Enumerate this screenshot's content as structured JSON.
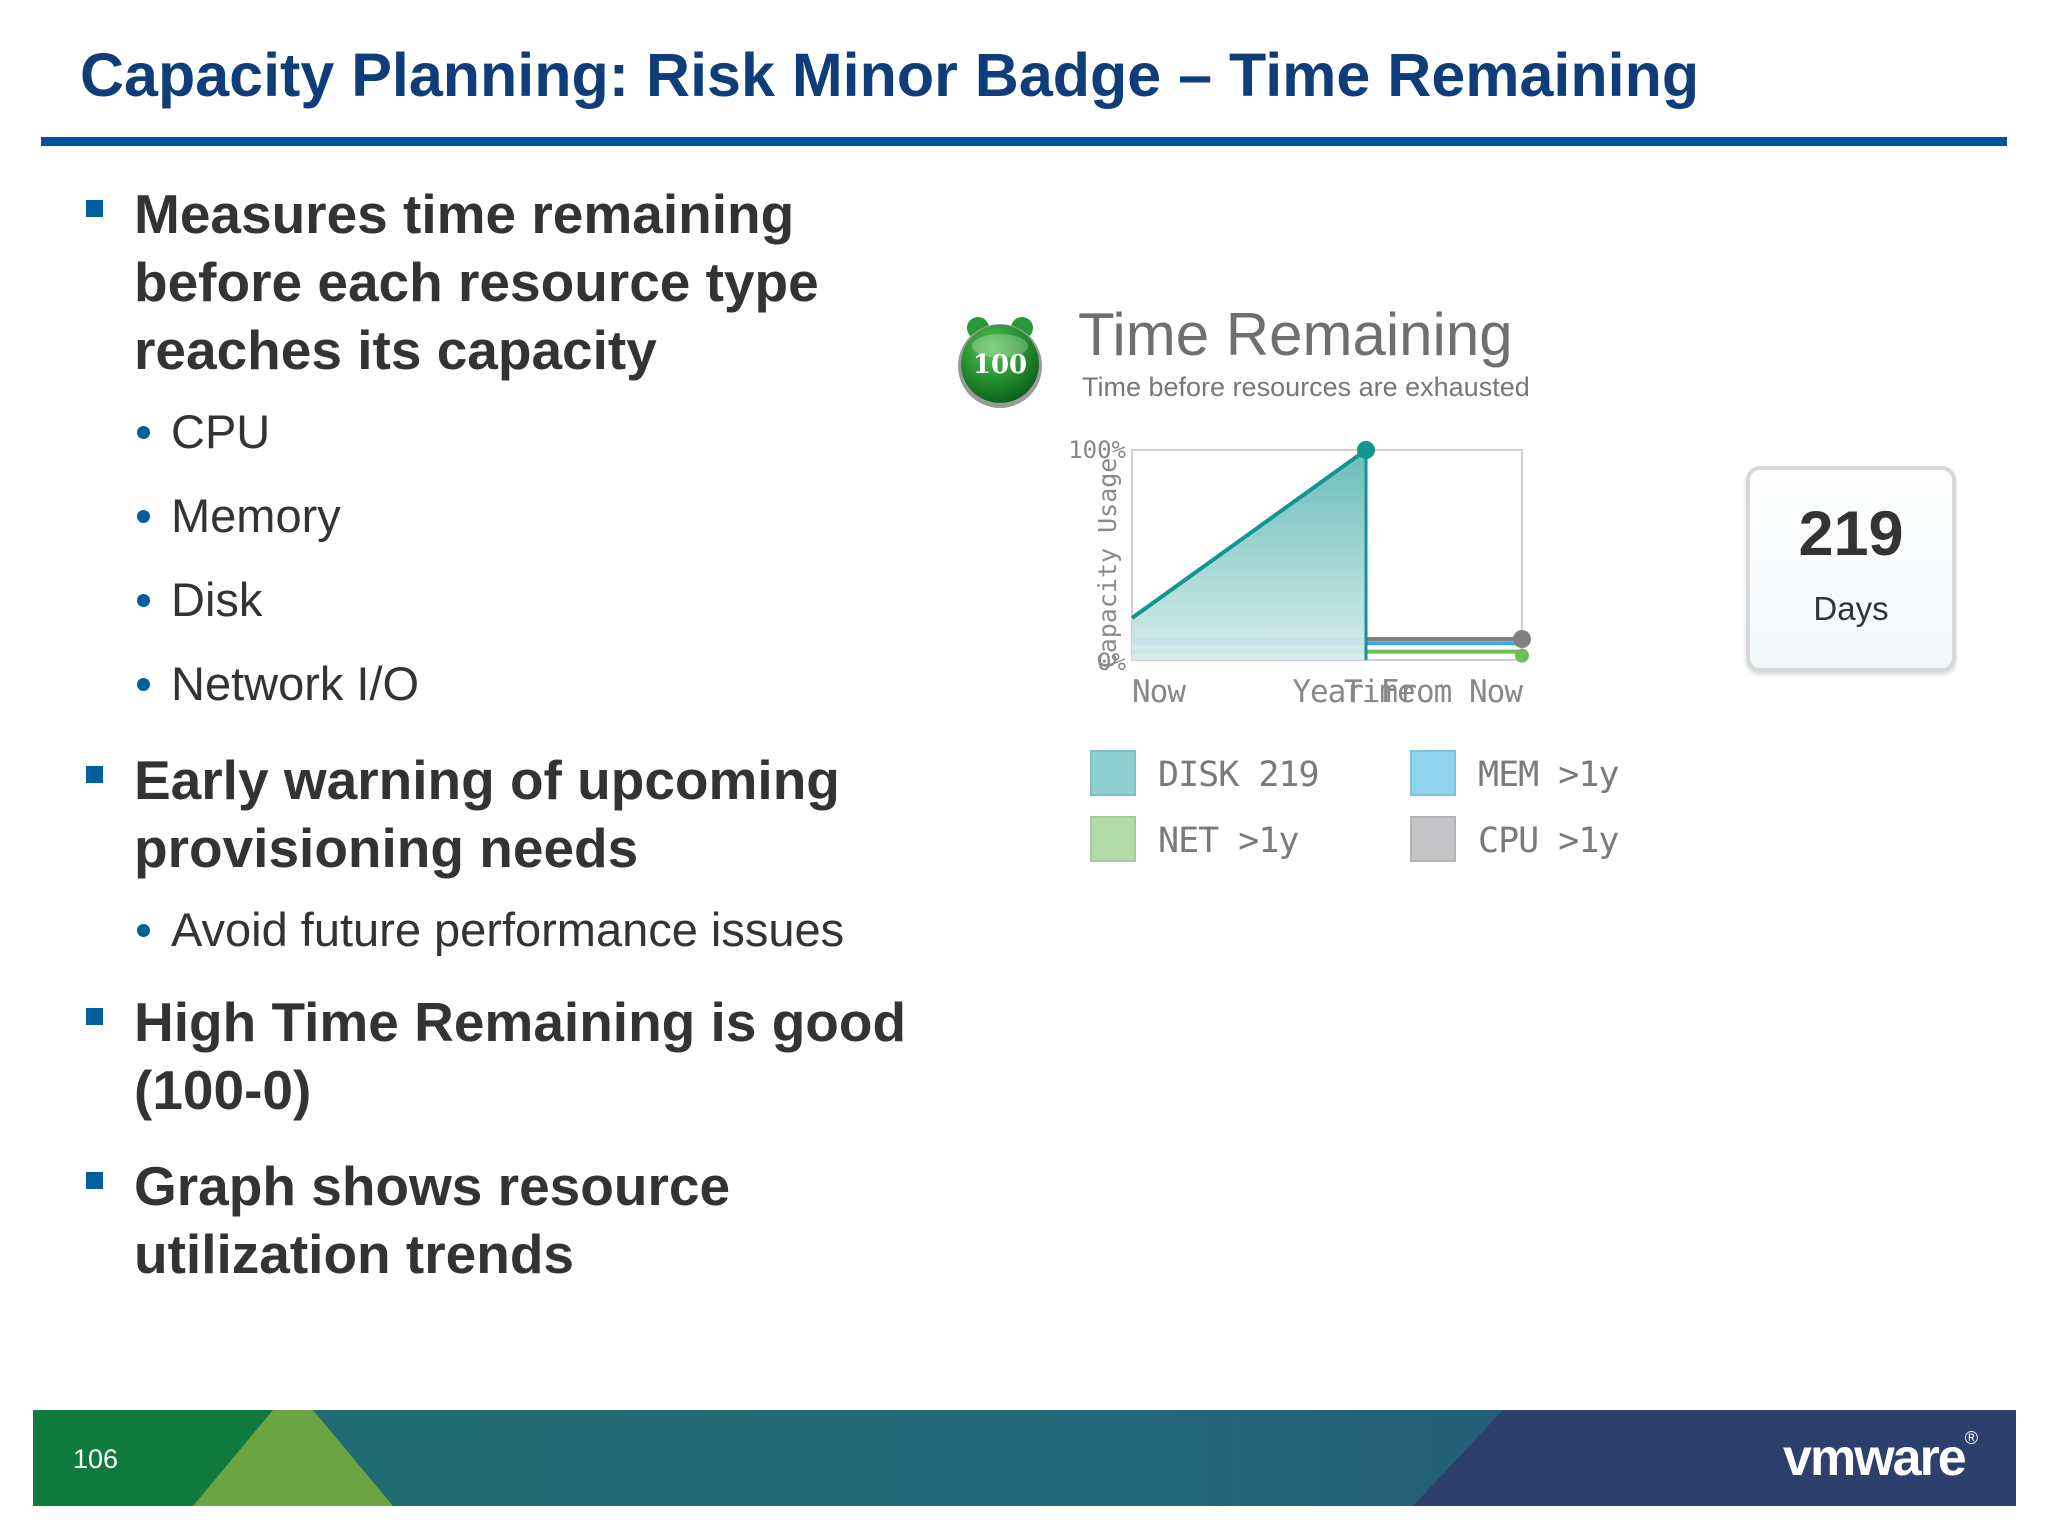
{
  "slide": {
    "title": "Capacity Planning: Risk Minor Badge – Time Remaining",
    "page_number": "106",
    "brand": "vmware",
    "brand_mark": "®",
    "colors": {
      "title": "#0f3d79",
      "rule": "#00539b",
      "bullet": "#00609e"
    }
  },
  "bullets": [
    {
      "text": "Measures time remaining before each resource type reaches its capacity",
      "sub": [
        "CPU",
        "Memory",
        "Disk",
        "Network I/O"
      ]
    },
    {
      "text": "Early warning of upcoming provisioning needs",
      "sub": [
        "Avoid future performance issues"
      ]
    },
    {
      "text": "High Time Remaining is good (100-0)",
      "sub": []
    },
    {
      "text": "Graph shows resource utilization trends",
      "sub": []
    }
  ],
  "widget": {
    "badge_value": "100",
    "badge_icon": "stopwatch-icon",
    "title": "Time Remaining",
    "subtitle": "Time before resources are exhausted",
    "days_value": "219",
    "days_label": "Days",
    "legend": [
      {
        "label": "DISK 219",
        "color": "#8ecfd0"
      },
      {
        "label": "MEM >1y",
        "color": "#8fd3ee"
      },
      {
        "label": "NET >1y",
        "color": "#b1dcaa"
      },
      {
        "label": "CPU >1y",
        "color": "#c4c4c6"
      }
    ]
  },
  "chart_data": {
    "type": "area",
    "title": "",
    "ylabel": "Capacity Usage",
    "xlabel": "",
    "x_ticks": [
      "Now",
      "Time",
      "Year From Now"
    ],
    "y_ticks": [
      "0%",
      "100%"
    ],
    "ylim": [
      0,
      100
    ],
    "xlim": [
      0,
      365
    ],
    "grid": false,
    "legend": "below",
    "series": [
      {
        "name": "DISK 219",
        "color": "#139590",
        "x": [
          0,
          219
        ],
        "y": [
          20,
          100
        ]
      },
      {
        "name": "MEM >1y",
        "color": "#3fa9df",
        "x": [
          0,
          365
        ],
        "y": [
          8,
          8
        ]
      },
      {
        "name": "NET >1y",
        "color": "#6dbf55",
        "x": [
          0,
          365
        ],
        "y": [
          4,
          4
        ]
      },
      {
        "name": "CPU >1y",
        "color": "#808080",
        "x": [
          0,
          365
        ],
        "y": [
          10,
          10
        ]
      }
    ]
  }
}
